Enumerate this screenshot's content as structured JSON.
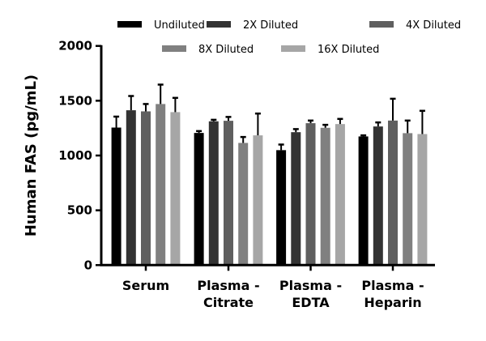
{
  "chart_data": {
    "type": "bar",
    "title": "",
    "xlabel": "",
    "ylabel": "Human FAS (pg/mL)",
    "ylim": [
      0,
      2000
    ],
    "yticks": [
      0,
      500,
      1000,
      1500,
      2000
    ],
    "grid": false,
    "legend_placement": "top",
    "categories": [
      [
        "Serum"
      ],
      [
        "Plasma -",
        "Citrate"
      ],
      [
        "Plasma -",
        "EDTA"
      ],
      [
        "Plasma -",
        "Heparin"
      ]
    ],
    "series": [
      {
        "name": "Undiluted",
        "color": "#000000",
        "values": [
          1255,
          1206,
          1049,
          1174
        ],
        "errors": [
          100,
          17,
          51,
          10
        ]
      },
      {
        "name": "2X Diluted",
        "color": "#333333",
        "values": [
          1413,
          1312,
          1213,
          1265
        ],
        "errors": [
          130,
          14,
          28,
          37
        ]
      },
      {
        "name": "4X Diluted",
        "color": "#5f5f5f",
        "values": [
          1403,
          1317,
          1295,
          1319
        ],
        "errors": [
          67,
          35,
          24,
          199
        ]
      },
      {
        "name": "8X Diluted",
        "color": "#808080",
        "values": [
          1470,
          1115,
          1253,
          1204
        ],
        "errors": [
          177,
          54,
          27,
          115
        ]
      },
      {
        "name": "16X Diluted",
        "color": "#a6a6a6",
        "values": [
          1396,
          1184,
          1287,
          1196
        ],
        "errors": [
          130,
          199,
          47,
          212
        ]
      }
    ]
  }
}
